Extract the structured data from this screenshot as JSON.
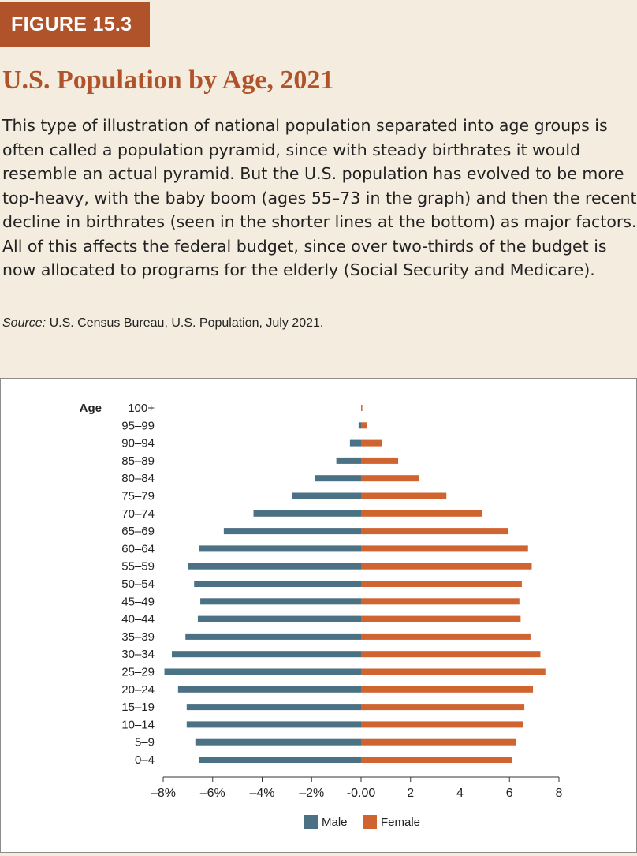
{
  "figure_label": "FIGURE 15.3",
  "title": "U.S. Population by Age, 2021",
  "caption": "This type of illustration of national population separated into age groups is often called a population pyramid, since with steady birthrates it would resemble an actual pyramid. But the U.S. population has evolved to be more top-heavy, with the baby boom (ages 55–73 in the graph) and then the recent decline in birthrates (seen in the shorter lines at the bottom) as major factors. All of this affects the federal budget, since over two-thirds of the budget is now allocated to programs for the elderly (Social Security and Medicare).",
  "source_label": "Source:",
  "source_text": " U.S. Census Bureau, U.S. Population, July 2021.",
  "colors": {
    "accent": "#b0532a",
    "male": "#4a7184",
    "female": "#cf6431",
    "background": "#f4ecdf"
  },
  "chart_data": {
    "type": "bar",
    "orientation": "horizontal",
    "subtype": "population-pyramid",
    "ylabel": "Age",
    "categories": [
      "100+",
      "95–99",
      "90–94",
      "85–89",
      "80–84",
      "75–79",
      "70–74",
      "65–69",
      "60–64",
      "55–59",
      "50–54",
      "45–49",
      "40–44",
      "35–39",
      "30–34",
      "25–29",
      "20–24",
      "15–19",
      "10–14",
      "5–9",
      "0–4"
    ],
    "series": [
      {
        "name": "Male",
        "color": "#4a7184",
        "values": [
          0,
          -0.1,
          -0.45,
          -1.0,
          -1.85,
          -2.8,
          -4.35,
          -5.55,
          -6.55,
          -7.0,
          -6.75,
          -6.5,
          -6.6,
          -7.1,
          -7.65,
          -7.95,
          -7.4,
          -7.05,
          -7.05,
          -6.7,
          -6.55
        ]
      },
      {
        "name": "Female",
        "color": "#cf6431",
        "values": [
          0.03,
          0.25,
          0.85,
          1.5,
          2.35,
          3.45,
          4.9,
          5.95,
          6.75,
          6.9,
          6.5,
          6.4,
          6.45,
          6.85,
          7.25,
          7.45,
          6.95,
          6.6,
          6.55,
          6.25,
          6.1
        ]
      }
    ],
    "xlim": [
      -8,
      8
    ],
    "xticks": [
      -8,
      -6,
      -4,
      -2,
      0,
      2,
      4,
      6,
      8
    ],
    "xtick_labels": [
      "–8%",
      "–6%",
      "–4%",
      "–2%",
      "-0.00",
      "2",
      "4",
      "6",
      "8"
    ],
    "legend_position": "bottom-center",
    "grid": false
  }
}
